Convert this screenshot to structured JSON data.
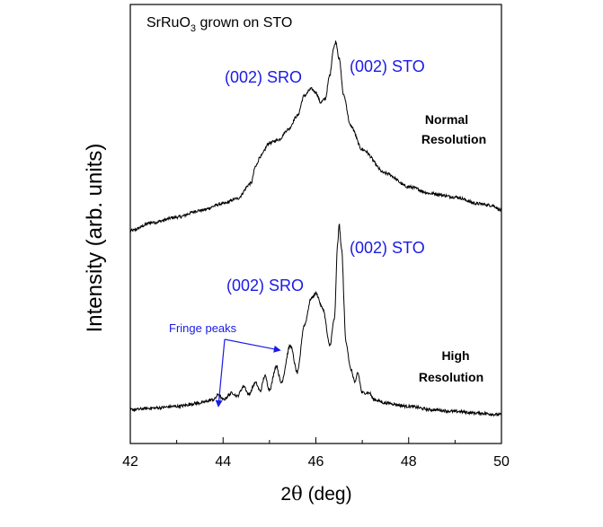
{
  "chart_data": {
    "type": "line",
    "title": "SrRuO",
    "title_subscript": "3",
    "title_suffix": " grown on STO",
    "xlabel_prefix": "2",
    "xlabel_symbol": "θ",
    "xlabel_suffix": " (deg)",
    "ylabel": "Intensity (arb. units)",
    "xlim": [
      42,
      50
    ],
    "xticks": [
      42,
      44,
      46,
      48,
      50
    ],
    "yticks_shown": false,
    "series": [
      {
        "name": "Normal Resolution",
        "label_line1": "Normal",
        "label_line2": "Resolution",
        "peaks": [
          {
            "label": "(002) SRO",
            "x": 45.95
          },
          {
            "label": "(002) STO",
            "x": 46.45
          }
        ],
        "points": [
          [
            42.0,
            6.3
          ],
          [
            42.5,
            6.55
          ],
          [
            43.0,
            6.7
          ],
          [
            43.5,
            6.9
          ],
          [
            44.0,
            7.1
          ],
          [
            44.3,
            7.25
          ],
          [
            44.6,
            7.7
          ],
          [
            44.7,
            8.2
          ],
          [
            44.8,
            8.5
          ],
          [
            45.0,
            8.9
          ],
          [
            45.2,
            9.0
          ],
          [
            45.4,
            9.3
          ],
          [
            45.6,
            9.7
          ],
          [
            45.75,
            10.3
          ],
          [
            45.9,
            10.5
          ],
          [
            46.0,
            10.4
          ],
          [
            46.1,
            10.1
          ],
          [
            46.2,
            10.2
          ],
          [
            46.3,
            10.9
          ],
          [
            46.38,
            11.7
          ],
          [
            46.43,
            11.9
          ],
          [
            46.5,
            11.4
          ],
          [
            46.6,
            10.3
          ],
          [
            46.75,
            9.4
          ],
          [
            47.0,
            8.7
          ],
          [
            47.5,
            8.0
          ],
          [
            48.0,
            7.6
          ],
          [
            48.5,
            7.4
          ],
          [
            49.0,
            7.3
          ],
          [
            49.5,
            7.1
          ],
          [
            49.8,
            7.05
          ],
          [
            50.0,
            6.9
          ]
        ]
      },
      {
        "name": "High Resolution",
        "label_line1": "High",
        "label_line2": "Resolution",
        "peaks": [
          {
            "label": "(002) SRO",
            "x": 45.97
          },
          {
            "label": "(002) STO",
            "x": 46.5
          }
        ],
        "points": [
          [
            42.0,
            1.0
          ],
          [
            42.5,
            1.05
          ],
          [
            43.0,
            1.1
          ],
          [
            43.5,
            1.2
          ],
          [
            43.8,
            1.3
          ],
          [
            43.9,
            1.45
          ],
          [
            44.0,
            1.3
          ],
          [
            44.2,
            1.5
          ],
          [
            44.3,
            1.4
          ],
          [
            44.45,
            1.7
          ],
          [
            44.55,
            1.45
          ],
          [
            44.7,
            1.8
          ],
          [
            44.8,
            1.55
          ],
          [
            44.9,
            2.0
          ],
          [
            45.0,
            1.6
          ],
          [
            45.15,
            2.3
          ],
          [
            45.25,
            1.8
          ],
          [
            45.45,
            2.9
          ],
          [
            45.6,
            2.1
          ],
          [
            45.75,
            3.5
          ],
          [
            45.9,
            4.3
          ],
          [
            46.0,
            4.45
          ],
          [
            46.15,
            4.0
          ],
          [
            46.3,
            2.9
          ],
          [
            46.4,
            3.7
          ],
          [
            46.47,
            5.9
          ],
          [
            46.5,
            6.5
          ],
          [
            46.55,
            5.8
          ],
          [
            46.65,
            3.0
          ],
          [
            46.75,
            2.2
          ],
          [
            46.85,
            1.8
          ],
          [
            46.9,
            2.1
          ],
          [
            47.0,
            1.5
          ],
          [
            47.15,
            1.5
          ],
          [
            47.25,
            1.3
          ],
          [
            47.5,
            1.2
          ],
          [
            48.0,
            1.1
          ],
          [
            48.5,
            1.0
          ],
          [
            49.0,
            0.95
          ],
          [
            49.5,
            0.9
          ],
          [
            50.0,
            0.85
          ]
        ]
      }
    ],
    "annotations": [
      {
        "text": "Fringe peaks",
        "arrows_to": [
          [
            43.9,
            1.6
          ],
          [
            45.25,
            2.5
          ]
        ]
      }
    ]
  }
}
